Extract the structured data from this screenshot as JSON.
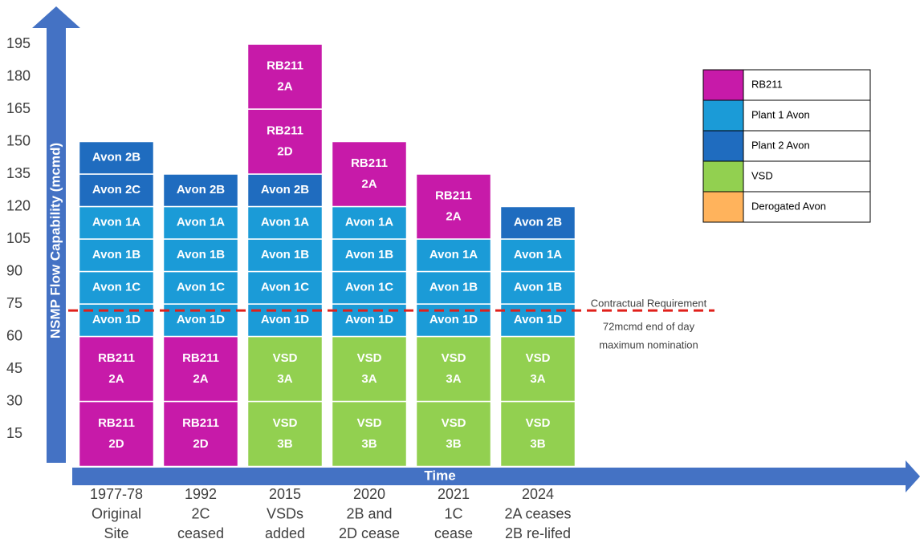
{
  "chart_data": {
    "type": "stacked-blocks",
    "y_label": "NSMP Flow Capability (mcmd)",
    "x_label": "Time",
    "ylim": [
      0,
      210
    ],
    "yticks": [
      15,
      30,
      45,
      60,
      75,
      90,
      105,
      120,
      135,
      150,
      165,
      180,
      195
    ],
    "categories": [
      [
        "1977-78",
        "Original",
        "Site"
      ],
      [
        "1992",
        "2C",
        "ceased"
      ],
      [
        "2015",
        "VSDs",
        "added"
      ],
      [
        "2020",
        "2B and",
        "2D cease"
      ],
      [
        "2021",
        "1C",
        "cease"
      ],
      [
        "2024",
        "2A ceases",
        "2B re-lifed"
      ]
    ],
    "columns": [
      [
        {
          "label": [
            "RB211",
            "2D"
          ],
          "value": 30,
          "color": "#c71aa9"
        },
        {
          "label": [
            "RB211",
            "2A"
          ],
          "value": 30,
          "color": "#c71aa9"
        },
        {
          "label": [
            "Avon 1D"
          ],
          "value": 15,
          "color": "#1b9bd7"
        },
        {
          "label": [
            "Avon 1C"
          ],
          "value": 15,
          "color": "#1b9bd7"
        },
        {
          "label": [
            "Avon 1B"
          ],
          "value": 15,
          "color": "#1b9bd7"
        },
        {
          "label": [
            "Avon 1A"
          ],
          "value": 15,
          "color": "#1b9bd7"
        },
        {
          "label": [
            "Avon 2C"
          ],
          "value": 15,
          "color": "#1f6cbf"
        },
        {
          "label": [
            "Avon 2B"
          ],
          "value": 15,
          "color": "#1f6cbf"
        }
      ],
      [
        {
          "label": [
            "RB211",
            "2D"
          ],
          "value": 30,
          "color": "#c71aa9"
        },
        {
          "label": [
            "RB211",
            "2A"
          ],
          "value": 30,
          "color": "#c71aa9"
        },
        {
          "label": [
            "Avon 1D"
          ],
          "value": 15,
          "color": "#1b9bd7"
        },
        {
          "label": [
            "Avon 1C"
          ],
          "value": 15,
          "color": "#1b9bd7"
        },
        {
          "label": [
            "Avon 1B"
          ],
          "value": 15,
          "color": "#1b9bd7"
        },
        {
          "label": [
            "Avon 1A"
          ],
          "value": 15,
          "color": "#1b9bd7"
        },
        {
          "label": [
            "Avon 2B"
          ],
          "value": 15,
          "color": "#1f6cbf"
        }
      ],
      [
        {
          "label": [
            "VSD",
            "3B"
          ],
          "value": 30,
          "color": "#92d050"
        },
        {
          "label": [
            "VSD",
            "3A"
          ],
          "value": 30,
          "color": "#92d050"
        },
        {
          "label": [
            "Avon 1D"
          ],
          "value": 15,
          "color": "#1b9bd7"
        },
        {
          "label": [
            "Avon 1C"
          ],
          "value": 15,
          "color": "#1b9bd7"
        },
        {
          "label": [
            "Avon 1B"
          ],
          "value": 15,
          "color": "#1b9bd7"
        },
        {
          "label": [
            "Avon 1A"
          ],
          "value": 15,
          "color": "#1b9bd7"
        },
        {
          "label": [
            "Avon 2B"
          ],
          "value": 15,
          "color": "#1f6cbf"
        },
        {
          "label": [
            "RB211",
            "2D"
          ],
          "value": 30,
          "color": "#c71aa9"
        },
        {
          "label": [
            "RB211",
            "2A"
          ],
          "value": 30,
          "color": "#c71aa9"
        }
      ],
      [
        {
          "label": [
            "VSD",
            "3B"
          ],
          "value": 30,
          "color": "#92d050"
        },
        {
          "label": [
            "VSD",
            "3A"
          ],
          "value": 30,
          "color": "#92d050"
        },
        {
          "label": [
            "Avon 1D"
          ],
          "value": 15,
          "color": "#1b9bd7"
        },
        {
          "label": [
            "Avon 1C"
          ],
          "value": 15,
          "color": "#1b9bd7"
        },
        {
          "label": [
            "Avon 1B"
          ],
          "value": 15,
          "color": "#1b9bd7"
        },
        {
          "label": [
            "Avon 1A"
          ],
          "value": 15,
          "color": "#1b9bd7"
        },
        {
          "label": [
            "RB211",
            "2A"
          ],
          "value": 30,
          "color": "#c71aa9"
        }
      ],
      [
        {
          "label": [
            "VSD",
            "3B"
          ],
          "value": 30,
          "color": "#92d050"
        },
        {
          "label": [
            "VSD",
            "3A"
          ],
          "value": 30,
          "color": "#92d050"
        },
        {
          "label": [
            "Avon 1D"
          ],
          "value": 15,
          "color": "#1b9bd7"
        },
        {
          "label": [
            "Avon 1B"
          ],
          "value": 15,
          "color": "#1b9bd7"
        },
        {
          "label": [
            "Avon 1A"
          ],
          "value": 15,
          "color": "#1b9bd7"
        },
        {
          "label": [
            "RB211",
            "2A"
          ],
          "value": 30,
          "color": "#c71aa9"
        }
      ],
      [
        {
          "label": [
            "VSD",
            "3B"
          ],
          "value": 30,
          "color": "#92d050"
        },
        {
          "label": [
            "VSD",
            "3A"
          ],
          "value": 30,
          "color": "#92d050"
        },
        {
          "label": [
            "Avon 1D"
          ],
          "value": 15,
          "color": "#1b9bd7"
        },
        {
          "label": [
            "Avon 1B"
          ],
          "value": 15,
          "color": "#1b9bd7"
        },
        {
          "label": [
            "Avon 1A"
          ],
          "value": 15,
          "color": "#1b9bd7"
        },
        {
          "label": [
            "Avon 2B"
          ],
          "value": 15,
          "color": "#1f6cbf"
        }
      ]
    ],
    "reference": {
      "value": 72,
      "color": "#e0201b",
      "label": [
        "Contractual Requirement",
        "72mcmd  end  of  day",
        "maximum  nomination"
      ]
    },
    "legend": [
      {
        "name": "RB211",
        "color": "#c71aa9"
      },
      {
        "name": "Plant 1 Avon",
        "color": "#1b9bd7"
      },
      {
        "name": "Plant 2 Avon",
        "color": "#1f6cbf"
      },
      {
        "name": "VSD",
        "color": "#92d050"
      },
      {
        "name": "Derogated Avon",
        "color": "#ffb35c"
      }
    ]
  }
}
